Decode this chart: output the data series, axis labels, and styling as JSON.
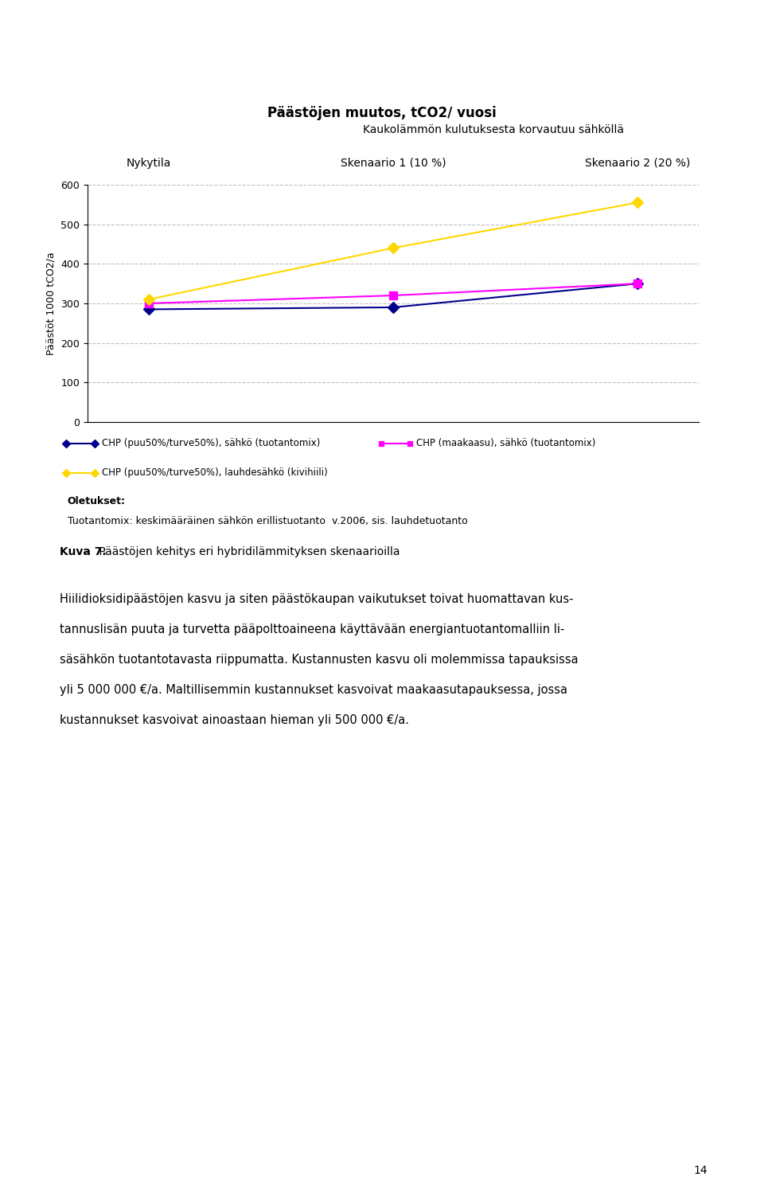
{
  "title_line1": "Päästöjen muutos, tCO2/ vuosi",
  "title_line2": "Kaukolämmön kulutuksesta korvautuu sähköllä",
  "x_labels": [
    "Nykytila",
    "Skenaario 1 (10 %)",
    "Skenaario 2 (20 %)"
  ],
  "x_values": [
    0,
    1,
    2
  ],
  "ylabel": "Päästöt 1000 tCO2/a",
  "ylim": [
    0,
    600
  ],
  "yticks": [
    0,
    100,
    200,
    300,
    400,
    500,
    600
  ],
  "series": [
    {
      "label": "CHP (puu50%/turve50%), sähkö (tuotantomix)",
      "values": [
        285,
        290,
        350
      ],
      "color": "#00008B",
      "marker": "D",
      "linewidth": 1.5,
      "markersize": 7
    },
    {
      "label": "CHP (maakaasu), sähkö (tuotantomix)",
      "values": [
        300,
        320,
        350
      ],
      "color": "#FF00FF",
      "marker": "s",
      "linewidth": 1.5,
      "markersize": 7
    },
    {
      "label": "CHP (puu50%/turve50%), lauhdesähkö (kivihiili)",
      "values": [
        310,
        440,
        555
      ],
      "color": "#FFD700",
      "marker": "D",
      "linewidth": 1.5,
      "markersize": 7
    }
  ],
  "legend_note_title": "Oletukset:",
  "legend_note_text": "Tuotantomix: keskimääräinen sähkön erillistuotanto  v.2006, sis. lauhdetuotanto",
  "caption_bold": "Kuva 7.",
  "caption_normal": " Päästöjen kehitys eri hybridilämmityksen skenaarioilla",
  "body_text": "Hiilidioksidipäästöjen kasvu ja siten päästökaupan vaikutukset toivat huomattavan kus-\ntannuslisän puuta ja turvetta pääpolttoaineena käyttävään energiantuotantomalliin li-\nsäsähkön tuotantotavasta riippumatta. Kustannusten kasvu oli molemmissa tapauksissa\nyli 5 000 000 €/a. Maltillisemmin kustannukset kasvoivat maakaasutapauksessa, jossa\nkustannukset kasvoivat ainoastaan hieman yli 500 000 €/a.",
  "page_number": "14",
  "background_color": "#ffffff",
  "grid_color": "#C0C0C0"
}
